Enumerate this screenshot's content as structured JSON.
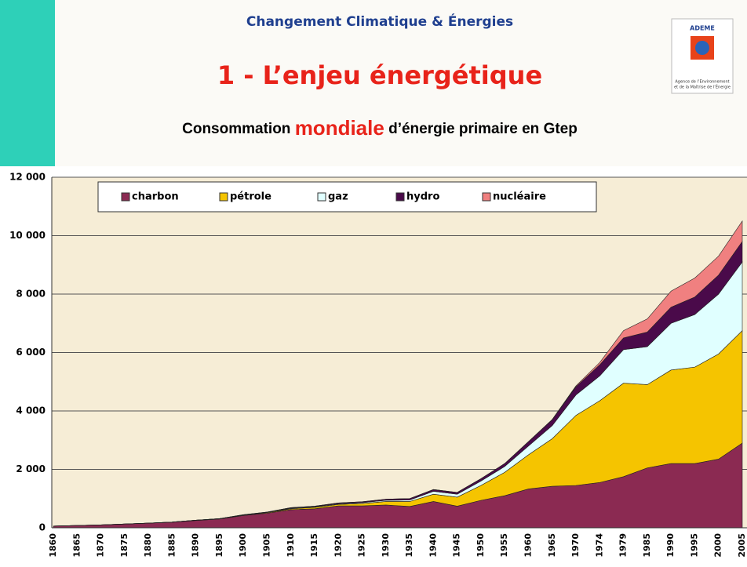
{
  "header": {
    "topic": "Changement Climatique & Énergies",
    "title": "1 - L’enjeu énergétique",
    "subtitle_start": "Consommation",
    "subtitle_highlight": "mondiale",
    "subtitle_end": "d’énergie primaire en Gtep",
    "logo": "ADEME",
    "logo_caption_1": "Agence de l’Environnement",
    "logo_caption_2": "et de la Maîtrise de l’Énergie"
  },
  "chart_data": {
    "type": "stacked-area",
    "categories": [
      "1860",
      "1865",
      "1870",
      "1875",
      "1880",
      "1885",
      "1890",
      "1895",
      "1900",
      "1905",
      "1910",
      "1915",
      "1920",
      "1925",
      "1930",
      "1935",
      "1940",
      "1945",
      "1950",
      "1955",
      "1960",
      "1965",
      "1970",
      "1974",
      "1979",
      "1985",
      "1990",
      "1995",
      "2000",
      "2005"
    ],
    "series": [
      {
        "name": "charbon",
        "color": "#8b2a52",
        "values": [
          60,
          80,
          100,
          130,
          160,
          190,
          250,
          300,
          420,
          500,
          620,
          650,
          750,
          750,
          780,
          730,
          900,
          740,
          940,
          1100,
          1330,
          1420,
          1450,
          1550,
          1750,
          2050,
          2200,
          2200,
          2350,
          2900
        ]
      },
      {
        "name": "pétrole",
        "color": "#f5c400",
        "values": [
          0,
          0,
          0,
          0,
          0,
          5,
          10,
          15,
          10,
          20,
          30,
          50,
          50,
          80,
          120,
          170,
          250,
          310,
          510,
          800,
          1170,
          1630,
          2400,
          2800,
          3200,
          2850,
          3200,
          3300,
          3600,
          3850
        ]
      },
      {
        "name": "gaz",
        "color": "#e0ffff",
        "values": [
          0,
          0,
          0,
          0,
          0,
          0,
          0,
          0,
          10,
          10,
          20,
          20,
          20,
          30,
          40,
          50,
          100,
          100,
          150,
          200,
          300,
          450,
          700,
          850,
          1150,
          1300,
          1600,
          1800,
          2050,
          2350
        ]
      },
      {
        "name": "hydro",
        "color": "#4a0a4a",
        "values": [
          0,
          0,
          0,
          0,
          0,
          0,
          0,
          0,
          10,
          10,
          20,
          20,
          30,
          30,
          40,
          50,
          60,
          60,
          80,
          100,
          150,
          200,
          280,
          380,
          400,
          500,
          550,
          600,
          650,
          700
        ]
      },
      {
        "name": "nucléaire",
        "color": "#f08080",
        "values": [
          0,
          0,
          0,
          0,
          0,
          0,
          0,
          0,
          0,
          0,
          0,
          0,
          0,
          0,
          0,
          0,
          0,
          0,
          0,
          0,
          0,
          10,
          30,
          80,
          250,
          450,
          550,
          650,
          650,
          700
        ]
      }
    ],
    "ylim": [
      0,
      12000
    ],
    "yticks": [
      0,
      {
        "value": 2000,
        "label": "2 000"
      },
      {
        "value": 4000,
        "label": "4 000"
      },
      {
        "value": 6000,
        "label": "6 000"
      },
      {
        "value": 8000,
        "label": "8 000"
      },
      {
        "value": 10000,
        "label": "10 000"
      },
      {
        "value": 12000,
        "label": "12 000"
      }
    ],
    "grid": true
  }
}
